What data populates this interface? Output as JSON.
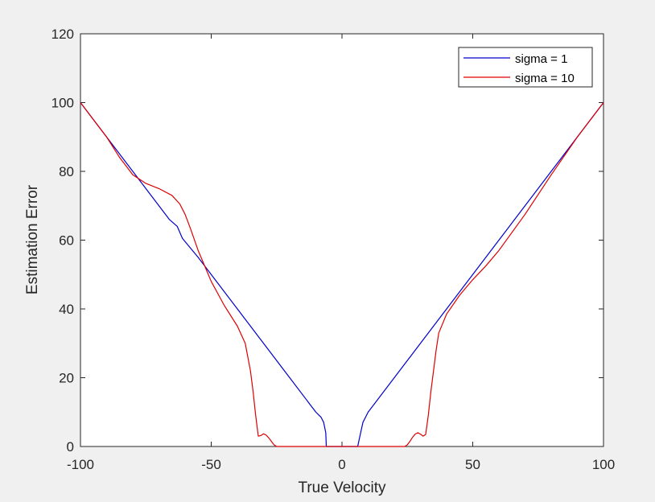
{
  "chart_data": {
    "type": "line",
    "title": "",
    "xlabel": "True Velocity",
    "ylabel": "Estimation Error",
    "xlim": [
      -100,
      100
    ],
    "ylim": [
      0,
      120
    ],
    "xticks": [
      -100,
      -50,
      0,
      50,
      100
    ],
    "yticks": [
      0,
      20,
      40,
      60,
      80,
      100,
      120
    ],
    "xtick_labels": [
      "-100",
      "-50",
      "0",
      "50",
      "100"
    ],
    "ytick_labels": [
      "0",
      "20",
      "40",
      "60",
      "80",
      "100",
      "120"
    ],
    "grid": false,
    "legend_position": "top-right",
    "series": [
      {
        "name": "sigma = 1",
        "color": "#0000cc",
        "x": [
          -100,
          -90,
          -80,
          -70,
          -66,
          -63,
          -61,
          -55,
          -50,
          -40,
          -30,
          -20,
          -12,
          -10,
          -8,
          -7,
          -6.2,
          -6,
          -5,
          0,
          5,
          6,
          7,
          8,
          10,
          20,
          30,
          40,
          50,
          60,
          70,
          80,
          90,
          100
        ],
        "y": [
          100,
          90,
          80,
          70,
          66,
          64,
          60.5,
          55,
          50,
          40,
          30,
          20,
          12,
          10,
          8.5,
          7,
          4,
          0,
          0,
          0,
          0,
          0,
          3.5,
          7,
          10,
          20,
          30,
          40,
          50,
          60,
          70,
          80,
          90,
          100
        ]
      },
      {
        "name": "sigma = 10",
        "color": "#dd0000",
        "x": [
          -100,
          -90,
          -85,
          -80,
          -75,
          -70,
          -65,
          -62,
          -60,
          -58,
          -55,
          -50,
          -45,
          -40,
          -37,
          -35,
          -34,
          -33,
          -32,
          -31,
          -30,
          -29,
          -28,
          -27,
          -26,
          -25,
          0,
          24,
          25,
          26,
          27,
          28,
          29,
          30,
          31,
          32,
          33,
          34,
          35,
          36,
          37,
          40,
          45,
          50,
          55,
          60,
          70,
          80,
          90,
          100
        ],
        "y": [
          100,
          90,
          84,
          79,
          76.5,
          75,
          73,
          70.5,
          67.5,
          63.5,
          57,
          48,
          41,
          35,
          30,
          22,
          16,
          9,
          3,
          3.2,
          3.7,
          3.3,
          2.5,
          1.5,
          0.5,
          0,
          0,
          0,
          0.5,
          1.5,
          2.7,
          3.6,
          4,
          3.6,
          3,
          3.5,
          9,
          16,
          22,
          28,
          33,
          38.5,
          44,
          48.5,
          52.5,
          57,
          67.5,
          79,
          90,
          100
        ]
      }
    ]
  }
}
